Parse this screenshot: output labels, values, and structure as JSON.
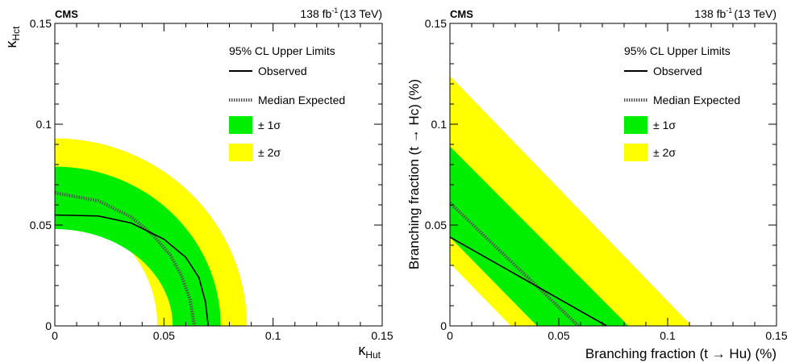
{
  "colors": {
    "two_sigma": "#ffff00",
    "one_sigma": "#00ee00",
    "observed": "#000000",
    "expected": "#555555"
  },
  "chart_data": [
    {
      "type": "area",
      "experiment": "CMS",
      "lumi": {
        "value": "138 fb",
        "exp": "-1",
        "energy": "(13 TeV)"
      },
      "xlabel": {
        "main": "κ",
        "sub": "Hut"
      },
      "ylabel": {
        "main": "κ",
        "sub": "Hct"
      },
      "xlim": [
        0,
        0.15
      ],
      "ylim": [
        0,
        0.15
      ],
      "xticks": [
        {
          "v": 0,
          "t": "0"
        },
        {
          "v": 0.05,
          "t": "0.05"
        },
        {
          "v": 0.1,
          "t": "0.1"
        },
        {
          "v": 0.15,
          "t": "0.15"
        }
      ],
      "yticks": [
        {
          "v": 0,
          "t": "0"
        },
        {
          "v": 0.05,
          "t": "0.05"
        },
        {
          "v": 0.1,
          "t": "0.1"
        },
        {
          "v": 0.15,
          "t": "0.15"
        }
      ],
      "legend": {
        "title": "95% CL Upper Limits",
        "observed": "Observed",
        "expected": "Median Expected",
        "one_sigma": "± 1σ",
        "two_sigma": "± 2σ"
      },
      "bands": {
        "two_sigma": {
          "rx": [
            0.047,
            0.088
          ],
          "ry": [
            0.055,
            0.093
          ]
        },
        "one_sigma": {
          "rx": [
            0.054,
            0.076
          ],
          "ry": [
            0.048,
            0.079
          ]
        }
      },
      "observed": [
        [
          0,
          0.055
        ],
        [
          0.02,
          0.0545
        ],
        [
          0.035,
          0.051
        ],
        [
          0.05,
          0.043
        ],
        [
          0.06,
          0.034
        ],
        [
          0.066,
          0.024
        ],
        [
          0.069,
          0.012
        ],
        [
          0.0703,
          0
        ]
      ],
      "expected": [
        [
          0,
          0.066
        ],
        [
          0.02,
          0.062
        ],
        [
          0.035,
          0.054
        ],
        [
          0.045,
          0.045
        ],
        [
          0.053,
          0.035
        ],
        [
          0.058,
          0.025
        ],
        [
          0.062,
          0.013
        ],
        [
          0.064,
          0
        ]
      ]
    },
    {
      "type": "area",
      "experiment": "CMS",
      "lumi": {
        "value": "138 fb",
        "exp": "-1",
        "energy": "(13 TeV)"
      },
      "xlabel": {
        "main": "Branching fraction (t → Hu) (%)"
      },
      "ylabel": {
        "main": "Branching fraction (t → Hc) (%)"
      },
      "xlim": [
        0,
        0.15
      ],
      "ylim": [
        0,
        0.15
      ],
      "xticks": [
        {
          "v": 0,
          "t": "0"
        },
        {
          "v": 0.05,
          "t": "0.05"
        },
        {
          "v": 0.1,
          "t": "0.1"
        },
        {
          "v": 0.15,
          "t": "0.15"
        }
      ],
      "yticks": [
        {
          "v": 0,
          "t": "0"
        },
        {
          "v": 0.05,
          "t": "0.05"
        },
        {
          "v": 0.1,
          "t": "0.1"
        },
        {
          "v": 0.15,
          "t": "0.15"
        }
      ],
      "legend": {
        "title": "95% CL Upper Limits",
        "observed": "Observed",
        "expected": "Median Expected",
        "one_sigma": "± 1σ",
        "two_sigma": "± 2σ"
      },
      "bands": {
        "two_sigma": {
          "x0": [
            0.028,
            0.111
          ],
          "y0": [
            0.031,
            0.124
          ]
        },
        "one_sigma": {
          "x0": [
            0.04,
            0.082
          ],
          "y0": [
            0.044,
            0.089
          ]
        }
      },
      "observed": [
        [
          0,
          0.044
        ],
        [
          0.072,
          0
        ]
      ],
      "expected": [
        [
          0,
          0.061
        ],
        [
          0.059,
          0
        ]
      ]
    }
  ]
}
